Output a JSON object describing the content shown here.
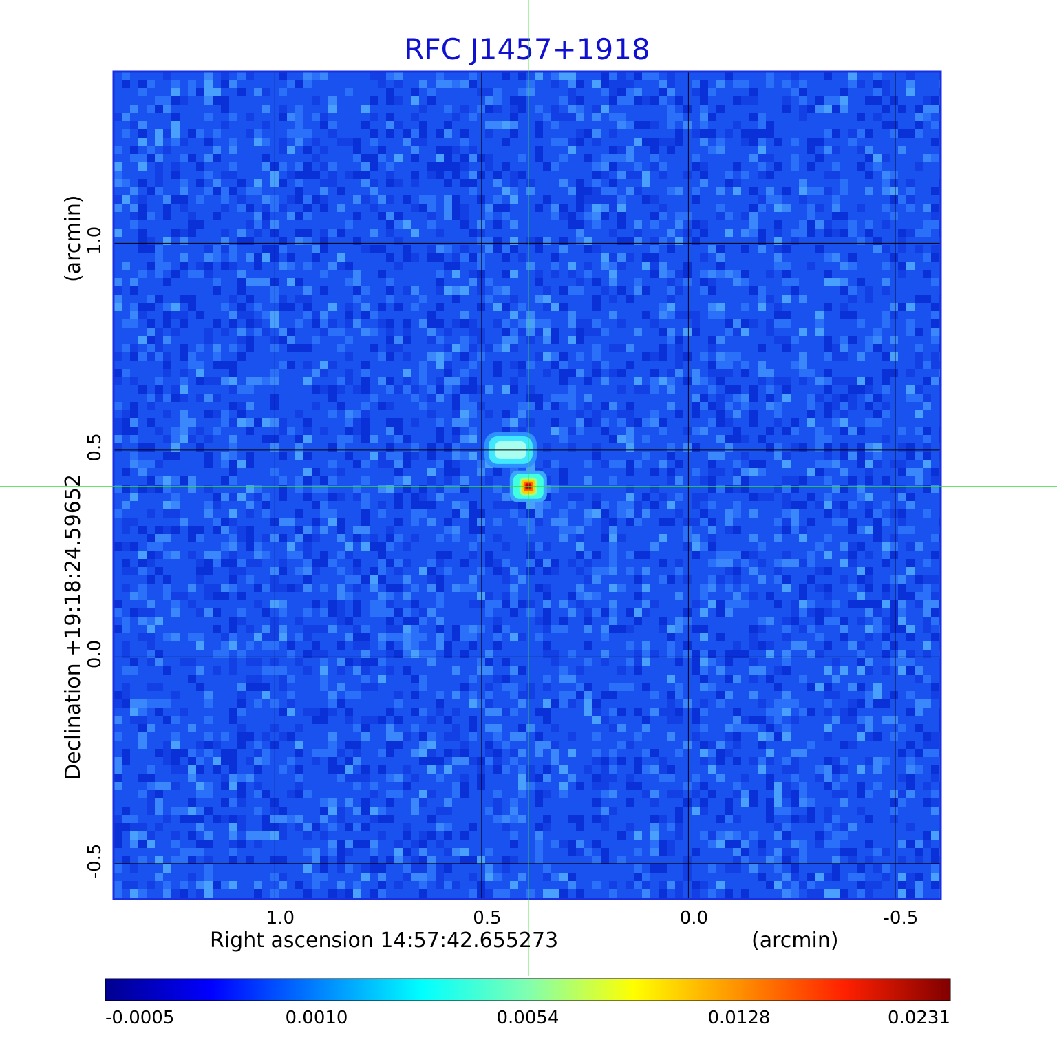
{
  "chart_data": {
    "type": "heatmap",
    "title": "RFC J1457+1918",
    "xlabel": "Right ascension  14:57:42.655273",
    "xunit": "(arcmin)",
    "ylabel": "Declination  +19:18:24.59652",
    "yunit": "(arcmin)",
    "x_ticks": [
      {
        "value": 1.0,
        "label": "1.0"
      },
      {
        "value": 0.5,
        "label": "0.5"
      },
      {
        "value": 0.0,
        "label": "0.0"
      },
      {
        "value": -0.5,
        "label": "-0.5"
      }
    ],
    "y_ticks": [
      {
        "value": 1.0,
        "label": "1.0"
      },
      {
        "value": 0.5,
        "label": "0.5"
      },
      {
        "value": 0.0,
        "label": "0.0"
      },
      {
        "value": -0.5,
        "label": "-0.5"
      }
    ],
    "xlim": [
      1.39,
      -0.61
    ],
    "ylim": [
      -0.585,
      1.415
    ],
    "crosshair": {
      "x": 0.387,
      "y": 0.412
    },
    "sources": [
      {
        "x": 0.387,
        "y": 0.412,
        "peak": 0.0231
      },
      {
        "x": 0.43,
        "y": 0.5,
        "peak": 0.0045
      }
    ],
    "colorbar": {
      "ticks": [
        {
          "value": -0.0005,
          "label": "-0.0005"
        },
        {
          "value": 0.001,
          "label": "0.0010"
        },
        {
          "value": 0.0054,
          "label": "0.0054"
        },
        {
          "value": 0.0128,
          "label": "0.0128"
        },
        {
          "value": 0.0231,
          "label": "0.0231"
        }
      ],
      "colors": [
        "#00008f",
        "#0000ff",
        "#00ffff",
        "#ffff00",
        "#ff0000",
        "#800000"
      ]
    },
    "grid": true,
    "colors": {
      "title": "#1010d0",
      "grid": "#000000",
      "crosshair": "#33dd33",
      "frame": "#1a30e0",
      "background_noise": "#1a52f0"
    }
  }
}
